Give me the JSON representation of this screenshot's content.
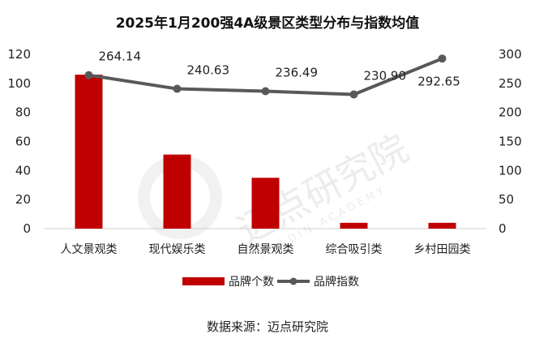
{
  "chart_data": {
    "type": "bar+line",
    "title": "2025年1月200强4A级景区类型分布与指数均值",
    "categories": [
      "人文景观类",
      "现代娱乐类",
      "自然景观类",
      "综合吸引类",
      "乡村田园类"
    ],
    "series": [
      {
        "name": "品牌个数",
        "kind": "bar",
        "axis": "left",
        "color": "#c00000",
        "values": [
          106,
          51,
          35,
          4,
          4
        ]
      },
      {
        "name": "品牌指数",
        "kind": "line",
        "axis": "right",
        "color": "#595959",
        "values": [
          264.14,
          240.63,
          236.49,
          230.9,
          292.65
        ],
        "data_labels": [
          "264.14",
          "240.63",
          "236.49",
          "230.90",
          "292.65"
        ]
      }
    ],
    "y_left": {
      "min": 0,
      "max": 120,
      "ticks": [
        "0",
        "20",
        "40",
        "60",
        "80",
        "100",
        "120"
      ]
    },
    "y_right": {
      "min": 0,
      "max": 300,
      "ticks": [
        "0",
        "50",
        "100",
        "150",
        "200",
        "250",
        "300"
      ]
    },
    "grid": false,
    "legend_position": "bottom",
    "source": "数据来源：迈点研究院"
  },
  "watermark": {
    "name": "迈点研究院",
    "sub": "MEADIN ACADEMY"
  }
}
